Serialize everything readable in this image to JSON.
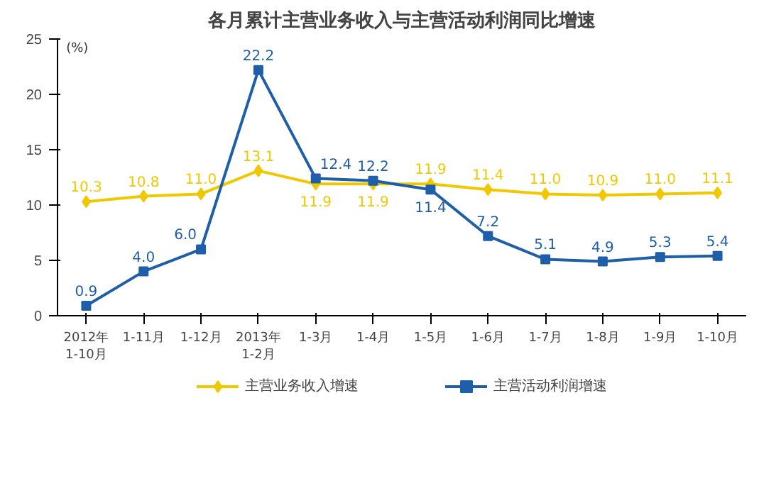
{
  "chart_data": {
    "type": "line",
    "title": "各月累计主营业务收入与主营活动利润同比增速",
    "ylabel": "(%)",
    "categories": [
      "2012年\n1-10月",
      "1-11月",
      "1-12月",
      "2013年\n1-2月",
      "1-3月",
      "1-4月",
      "1-5月",
      "1-6月",
      "1-7月",
      "1-8月",
      "1-9月",
      "1-10月"
    ],
    "series": [
      {
        "name": "主营业务收入增速",
        "color": "#f0c800",
        "marker": "diamond",
        "values": [
          10.3,
          10.8,
          11.0,
          13.1,
          11.9,
          11.9,
          11.9,
          11.4,
          11.0,
          10.9,
          11.0,
          11.1
        ],
        "value_labels": [
          "10.3",
          "10.8",
          "11.0",
          "13.1",
          "11.9",
          "11.9",
          "11.9",
          "11.4",
          "11.0",
          "10.9",
          "11.0",
          "11.1"
        ]
      },
      {
        "name": "主营活动利润增速",
        "color": "#1f5ea8",
        "marker": "square",
        "values": [
          0.9,
          4.0,
          6.0,
          22.2,
          12.4,
          12.2,
          11.4,
          7.2,
          5.1,
          4.9,
          5.3,
          5.4
        ],
        "value_labels": [
          "0.9",
          "4.0",
          "6.0",
          "22.2",
          "12.4",
          "12.2",
          "11.4",
          "7.2",
          "5.1",
          "4.9",
          "5.3",
          "5.4"
        ]
      }
    ],
    "ylim": [
      0,
      25
    ],
    "yticks": [
      0,
      5,
      10,
      15,
      20,
      25
    ],
    "grid": false,
    "legend": "bottom"
  }
}
